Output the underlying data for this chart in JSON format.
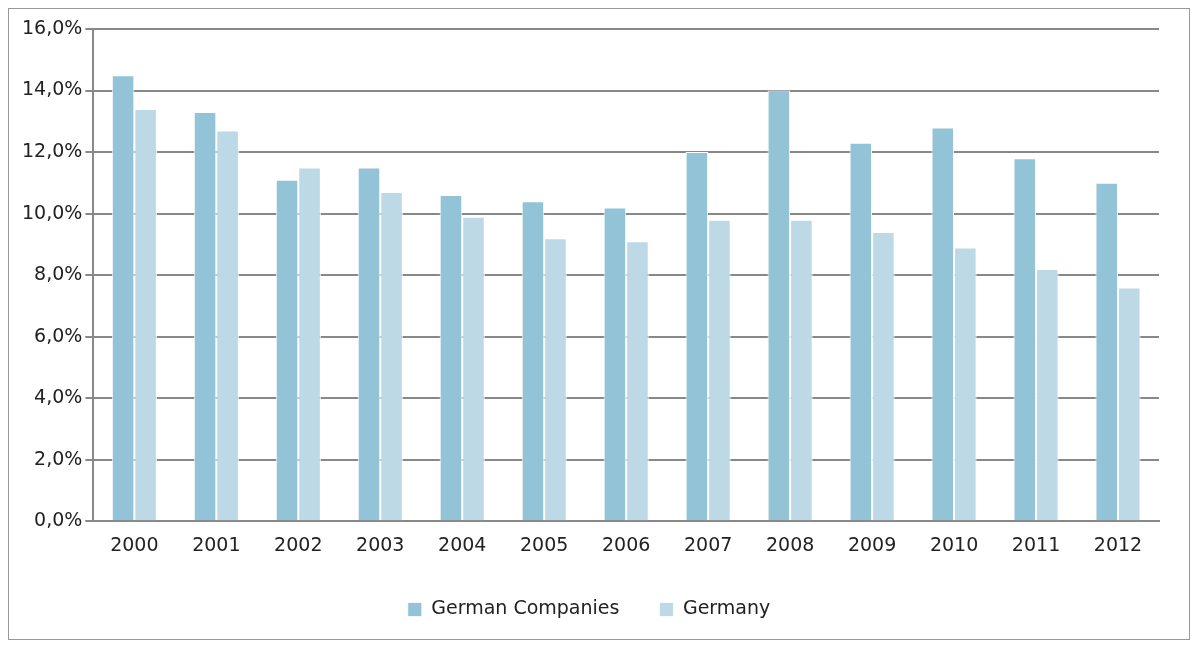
{
  "chart_data": {
    "type": "bar",
    "categories": [
      "2000",
      "2001",
      "2002",
      "2003",
      "2004",
      "2005",
      "2006",
      "2007",
      "2008",
      "2009",
      "2010",
      "2011",
      "2012"
    ],
    "series": [
      {
        "name": "German Companies",
        "color": "#92c3d7",
        "values": [
          14.5,
          13.3,
          11.1,
          11.5,
          10.6,
          10.4,
          10.2,
          12.0,
          14.0,
          12.3,
          12.8,
          11.8,
          11.0
        ]
      },
      {
        "name": "Germany",
        "color": "#bdd9e5",
        "values": [
          13.4,
          12.7,
          11.5,
          10.7,
          9.9,
          9.2,
          9.1,
          9.8,
          9.8,
          9.4,
          8.9,
          8.2,
          7.6
        ]
      }
    ],
    "ylim": [
      0,
      16
    ],
    "yticks": [
      {
        "value": 0,
        "label": "0,0%"
      },
      {
        "value": 2,
        "label": "2,0%"
      },
      {
        "value": 4,
        "label": "4,0%"
      },
      {
        "value": 6,
        "label": "6,0%"
      },
      {
        "value": 8,
        "label": "8,0%"
      },
      {
        "value": 10,
        "label": "10,0%"
      },
      {
        "value": 12,
        "label": "12,0%"
      },
      {
        "value": 14,
        "label": "14,0%"
      },
      {
        "value": 16,
        "label": "16,0%"
      }
    ],
    "grid": "y",
    "legend": "bottom"
  }
}
